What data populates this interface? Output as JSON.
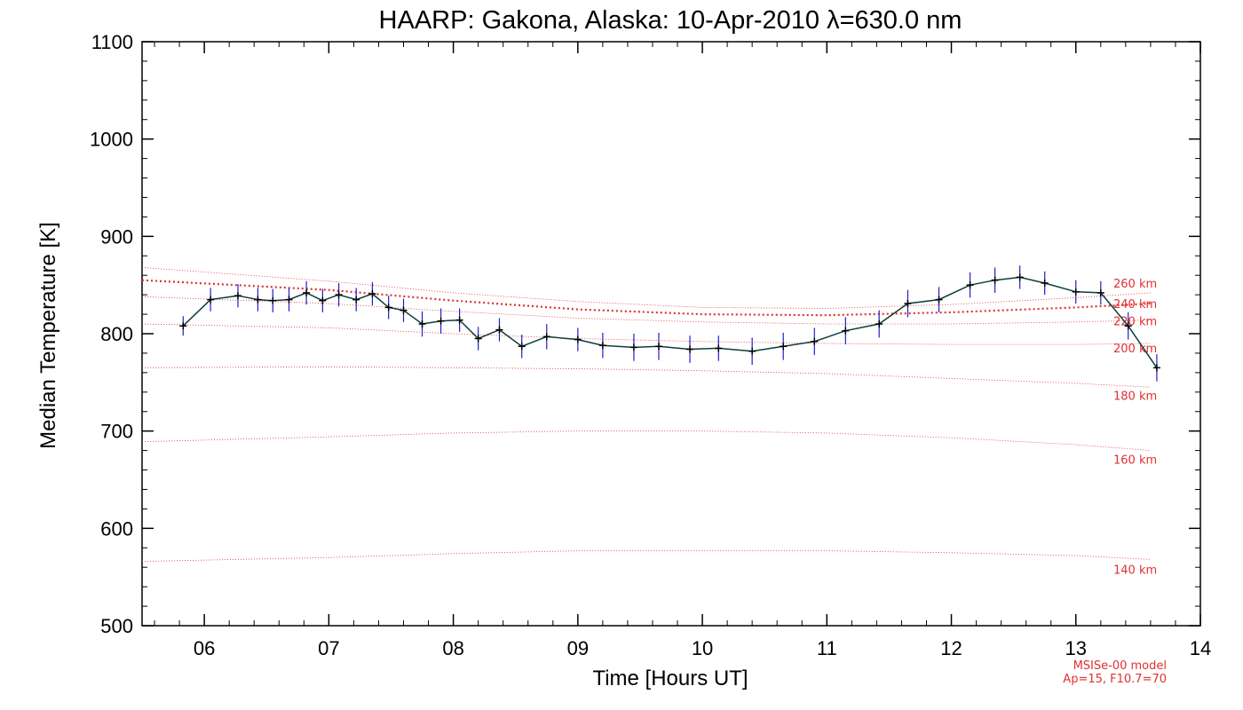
{
  "chart_data": {
    "type": "line",
    "title": "HAARP: Gakona,  Alaska: 10-Apr-2010 λ=630.0 nm",
    "xlabel": "Time [Hours UT]",
    "ylabel": "Median Temperature [K]",
    "xlim": [
      5.5,
      14
    ],
    "ylim": [
      500,
      1100
    ],
    "x_ticks": [
      6,
      7,
      8,
      9,
      10,
      11,
      12,
      13,
      14
    ],
    "x_tick_labels": [
      "06",
      "07",
      "08",
      "09",
      "10",
      "11",
      "12",
      "13",
      "14"
    ],
    "y_ticks": [
      500,
      600,
      700,
      800,
      900,
      1000,
      1100
    ],
    "y_tick_labels": [
      "500",
      "600",
      "700",
      "800",
      "900",
      "1000",
      "1100"
    ],
    "grid": false,
    "colors": {
      "measured_line": "#0b3d3d",
      "error_bars": "#1f1fcc",
      "markers": "#000000",
      "model": "#e03030"
    },
    "series": [
      {
        "x": [
          5.83,
          6.05,
          6.27,
          6.43,
          6.55,
          6.68,
          6.82,
          6.95,
          7.08,
          7.22,
          7.35,
          7.48,
          7.6,
          7.75,
          7.9,
          8.05,
          8.2,
          8.37,
          8.55,
          8.75,
          9.0,
          9.2,
          9.45,
          9.65,
          9.9,
          10.13,
          10.4,
          10.65,
          10.9,
          11.15,
          11.42,
          11.65,
          11.9,
          12.15,
          12.35,
          12.55,
          12.75,
          13.0,
          13.2,
          13.42,
          13.65
        ],
        "y": [
          808,
          835,
          839,
          835,
          834,
          835,
          842,
          834,
          840,
          835,
          841,
          827,
          824,
          810,
          813,
          814,
          795,
          804,
          787,
          797,
          794,
          788,
          786,
          787,
          784,
          785,
          782,
          787,
          792,
          803,
          810,
          831,
          835,
          850,
          855,
          858,
          852,
          843,
          842,
          808,
          765
        ],
        "error": [
          10,
          12,
          12,
          12,
          12,
          12,
          12,
          12,
          12,
          12,
          12,
          12,
          12,
          13,
          13,
          12,
          12,
          12,
          12,
          13,
          12,
          13,
          14,
          14,
          14,
          13,
          14,
          14,
          14,
          14,
          14,
          14,
          13,
          13,
          13,
          12,
          12,
          12,
          12,
          14,
          14
        ]
      }
    ],
    "model_curves": [
      {
        "label": "140 km",
        "x": [
          5.5,
          7.0,
          8.0,
          9.0,
          10.0,
          11.0,
          12.0,
          13.0,
          13.6
        ],
        "y": [
          566,
          570,
          574,
          577,
          577,
          577,
          575,
          572,
          568
        ]
      },
      {
        "label": "160 km",
        "x": [
          5.5,
          7.0,
          8.0,
          9.0,
          10.0,
          11.0,
          12.0,
          13.0,
          13.6
        ],
        "y": [
          689,
          694,
          698,
          700,
          700,
          698,
          693,
          686,
          680
        ]
      },
      {
        "label": "180 km",
        "x": [
          5.5,
          7.0,
          8.0,
          9.0,
          10.0,
          11.0,
          12.0,
          13.0,
          13.6
        ],
        "y": [
          765,
          766,
          765,
          764,
          762,
          759,
          754,
          749,
          745
        ]
      },
      {
        "label": "200 km",
        "x": [
          5.5,
          7.0,
          8.0,
          9.0,
          10.0,
          11.0,
          12.0,
          13.0,
          13.6
        ],
        "y": [
          810,
          806,
          800,
          795,
          792,
          790,
          789,
          789,
          790
        ]
      },
      {
        "label": "220 km",
        "x": [
          5.5,
          7.0,
          8.0,
          9.0,
          10.0,
          11.0,
          12.0,
          13.0,
          13.6
        ],
        "y": [
          838,
          831,
          823,
          816,
          812,
          810,
          810,
          812,
          814
        ]
      },
      {
        "label": "240 km",
        "x": [
          5.5,
          7.0,
          8.0,
          9.0,
          10.0,
          11.0,
          12.0,
          13.0,
          13.6
        ],
        "y": [
          855,
          845,
          834,
          825,
          820,
          819,
          822,
          827,
          831
        ]
      },
      {
        "label": "260 km",
        "x": [
          5.5,
          7.0,
          8.0,
          9.0,
          10.0,
          11.0,
          12.0,
          13.0,
          13.6
        ],
        "y": [
          868,
          854,
          842,
          833,
          827,
          826,
          830,
          837,
          842
        ]
      }
    ],
    "annotations": [
      "MSISe-00 model",
      "Ap=15, F10.7=70"
    ]
  }
}
